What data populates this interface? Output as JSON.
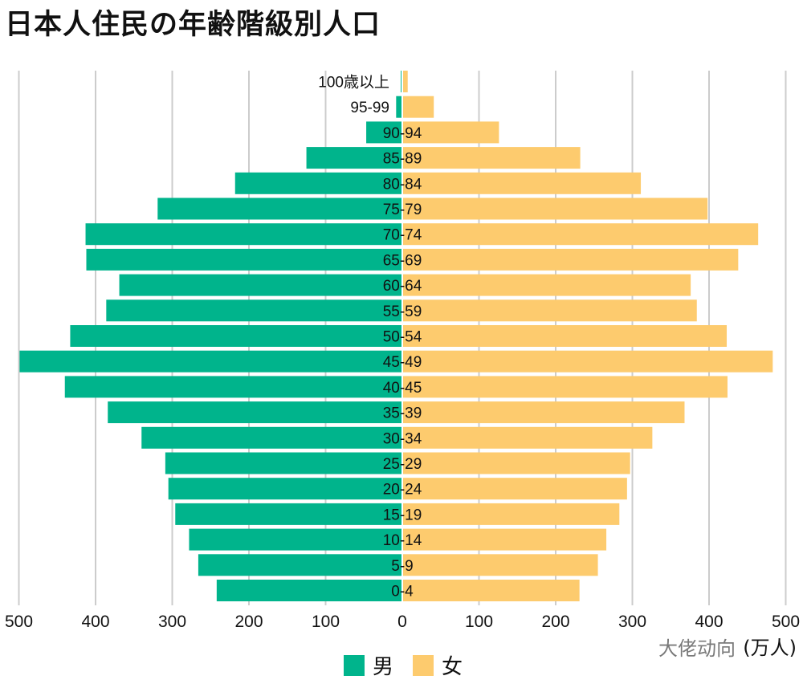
{
  "title": "日本人住民の年齢階級別人口",
  "unit_label": "(万人)",
  "watermark": "大佬动向",
  "colors": {
    "male": "#00b48c",
    "female": "#fdcb6e",
    "grid": "#cccccc",
    "axis": "#111111"
  },
  "legend": {
    "male_label": "男",
    "female_label": "女"
  },
  "chart_data": {
    "type": "bar",
    "orientation": "horizontal-population-pyramid",
    "categories": [
      "0-4",
      "5-9",
      "10-14",
      "15-19",
      "20-24",
      "25-29",
      "30-34",
      "35-39",
      "40-45",
      "45-49",
      "50-54",
      "55-59",
      "60-64",
      "65-69",
      "70-74",
      "75-79",
      "80-84",
      "85-89",
      "90-94",
      "95-99",
      "100歳以上"
    ],
    "series": [
      {
        "name": "男",
        "values": [
          241,
          265,
          277,
          295,
          304,
          308,
          339,
          383,
          439,
          498,
          432,
          385,
          368,
          411,
          412,
          318,
          217,
          124,
          46,
          7,
          1
        ]
      },
      {
        "name": "女",
        "values": [
          230,
          254,
          265,
          282,
          292,
          296,
          325,
          367,
          423,
          482,
          422,
          383,
          375,
          437,
          463,
          397,
          310,
          231,
          125,
          40,
          6
        ]
      }
    ],
    "xticks": [
      "500",
      "400",
      "300",
      "200",
      "100",
      "0",
      "100",
      "200",
      "300",
      "400",
      "500"
    ],
    "xlim": [
      -500,
      500
    ],
    "grid": true
  }
}
